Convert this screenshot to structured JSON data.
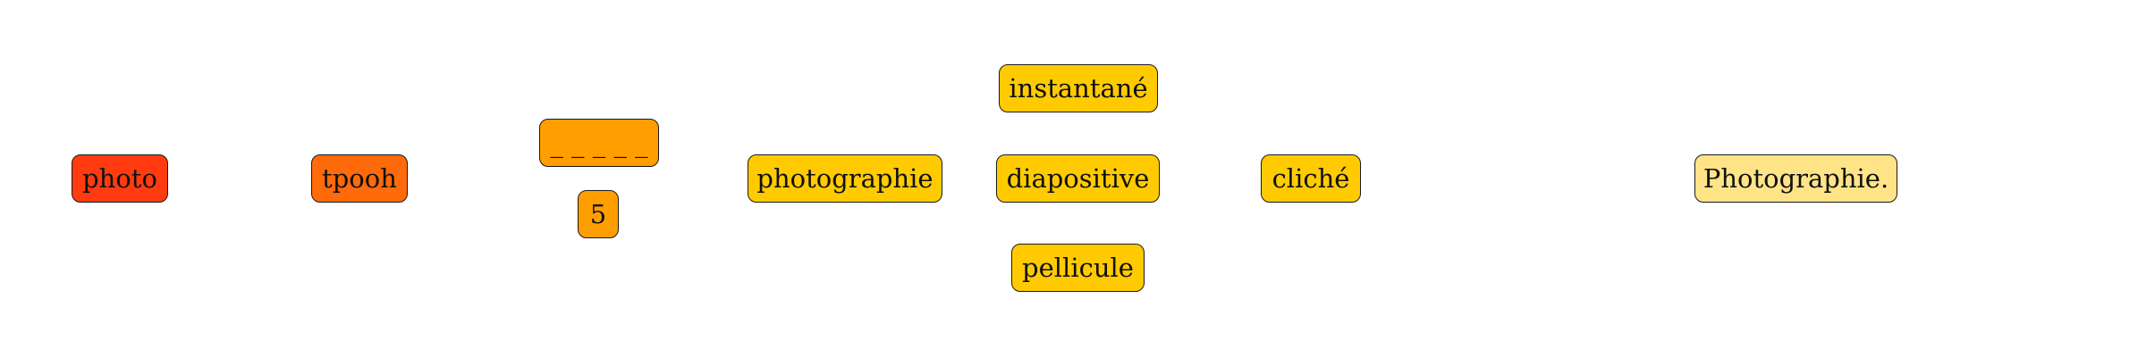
{
  "diagram": {
    "nodes": [
      {
        "id": "photo",
        "label": "photo",
        "color": "#ff3b0f"
      },
      {
        "id": "tpooh",
        "label": "tpooh",
        "color": "#ff6a0a"
      },
      {
        "id": "blank",
        "label": "_ _ _ _ _",
        "color": "#ff9e00"
      },
      {
        "id": "five",
        "label": "5",
        "color": "#ff9e00"
      },
      {
        "id": "photographie",
        "label": "photographie",
        "color": "#ffcb00"
      },
      {
        "id": "instantane",
        "label": "instantané",
        "color": "#ffcb00"
      },
      {
        "id": "diapositive",
        "label": "diapositive",
        "color": "#ffcb00"
      },
      {
        "id": "pellicule",
        "label": "pellicule",
        "color": "#ffcb00"
      },
      {
        "id": "cliche",
        "label": "cliché",
        "color": "#ffcb00"
      },
      {
        "id": "photographie_final",
        "label": "Photographie.",
        "color": "#ffe487"
      }
    ]
  }
}
